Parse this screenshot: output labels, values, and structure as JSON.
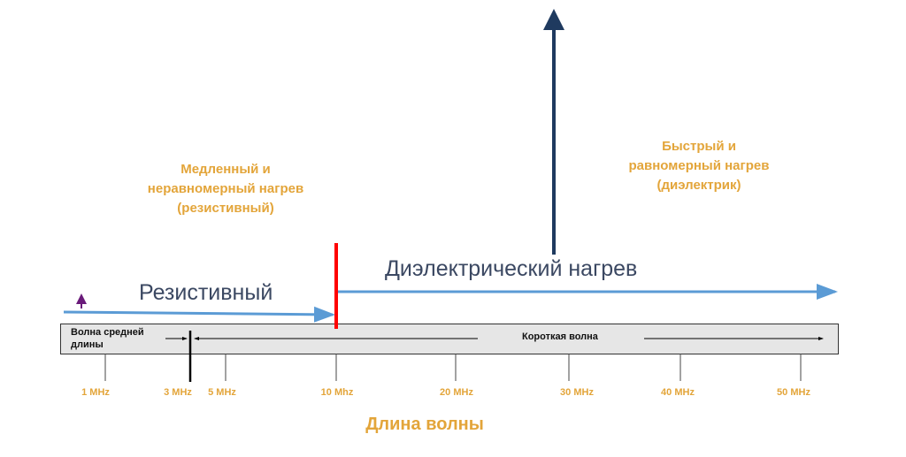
{
  "notes": {
    "resistive_heating": [
      "Медленный и",
      "неравномерный нагрев",
      "(резистивный)"
    ],
    "dielectric_heating": [
      "Быстрый и",
      "равномерный нагрев",
      "(диэлектрик)"
    ]
  },
  "regions": {
    "resistive": "Резистивный",
    "dielectric": "Диэлектрический нагрев"
  },
  "band": {
    "medium_wave": [
      "Волна средней",
      "длины"
    ],
    "short_wave": "Короткая волна"
  },
  "ticks": [
    "1 MHz",
    "3 MHz",
    "5 MHz",
    "10 Mhz",
    "20 MHz",
    "30 MHz",
    "40 MHz",
    "50 MHz"
  ],
  "axis_title": "Длина волны",
  "colors": {
    "label": "#e3a53a",
    "arrow_blue": "#5b9bd5",
    "divider_red": "#ff0000",
    "arrow_navy": "#1f3a5f",
    "text": "#3b4862"
  }
}
